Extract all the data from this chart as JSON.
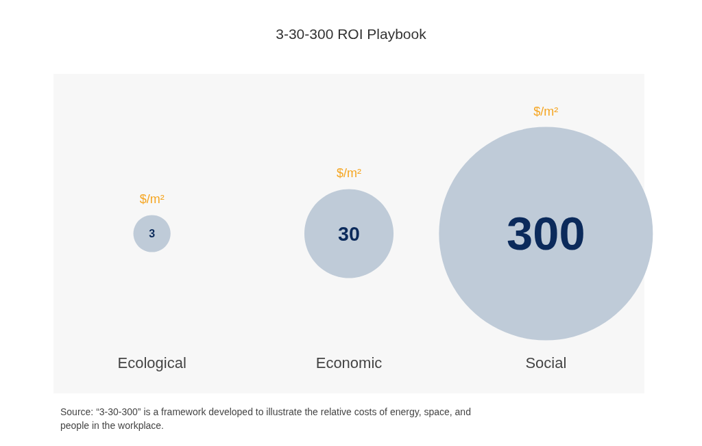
{
  "chart_data": {
    "type": "other",
    "title": "3-30-300 ROI Playbook",
    "categories": [
      "Ecological",
      "Economic",
      "Social"
    ],
    "values": [
      3,
      30,
      300
    ],
    "color": "#bfcbd8",
    "data_labels": true,
    "annotations": [
      {
        "text": "$/m²",
        "x": "Ecological"
      },
      {
        "text": "$/m²",
        "x": "Economic"
      },
      {
        "text": "$/m²",
        "x": "Social"
      },
      "Source: “3-30-300” is a framework developed to illustrate the relative costs of energy, space, and people in the workplace."
    ]
  }
}
